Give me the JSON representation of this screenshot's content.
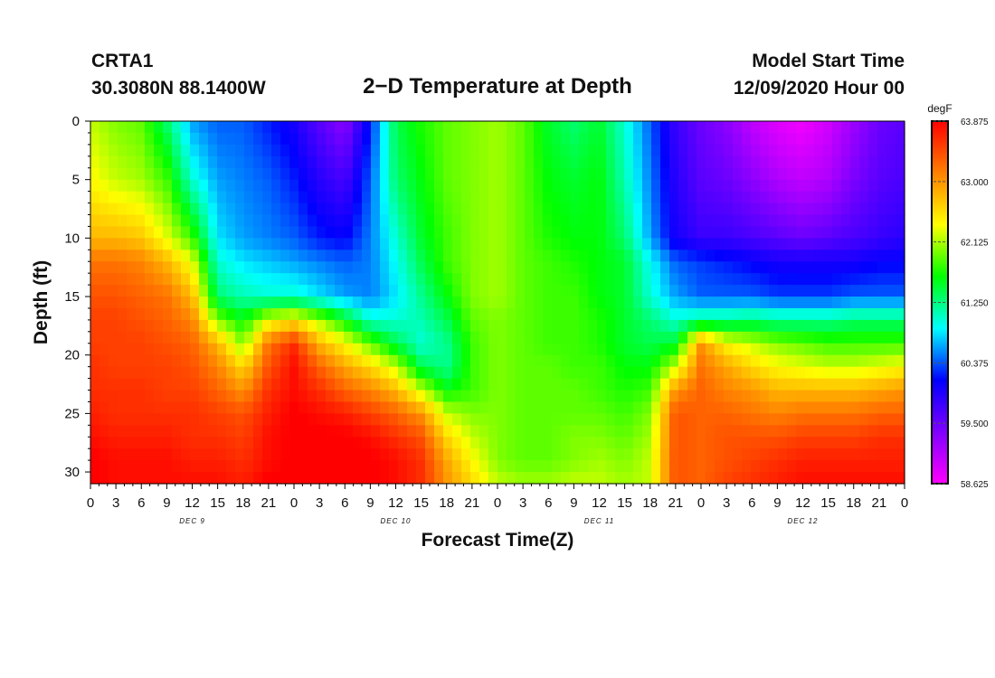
{
  "header": {
    "station": "CRTA1",
    "latlon": "30.3080N 88.1400W",
    "title": "2−D Temperature at Depth",
    "model_start_label": "Model Start Time",
    "model_start_value": "12/09/2020 Hour 00"
  },
  "colors": {
    "stops": [
      "#ff00ff",
      "#8000ff",
      "#0000ff",
      "#00ffff",
      "#00ff00",
      "#ffff00",
      "#ff8000",
      "#ff0000"
    ]
  },
  "chart_data": {
    "type": "heatmap",
    "title": "2−D Temperature at Depth",
    "xlabel": "Forecast Time(Z)",
    "ylabel": "Depth (ft)",
    "ylim": [
      0,
      31
    ],
    "y_inverted": true,
    "y_ticks": [
      "0",
      "5",
      "10",
      "15",
      "20",
      "25",
      "30"
    ],
    "x_ticks": [
      "0",
      "3",
      "6",
      "9",
      "12",
      "15",
      "18",
      "21",
      "0",
      "3",
      "6",
      "9",
      "12",
      "15",
      "18",
      "21",
      "0",
      "3",
      "6",
      "9",
      "12",
      "15",
      "18",
      "21",
      "0",
      "3",
      "6",
      "9",
      "12",
      "15",
      "18",
      "21",
      "0"
    ],
    "day_labels": [
      "DEC 9",
      "DEC 10",
      "DEC 11",
      "DEC 12"
    ],
    "colorbar": {
      "unit": "degF",
      "min": 58.625,
      "max": 63.875,
      "ticks": [
        "63.875",
        "63.000",
        "62.125",
        "61.250",
        "60.375",
        "59.500",
        "58.625"
      ]
    },
    "profiles_time_hours": [
      0,
      3,
      6,
      9,
      12,
      15,
      18,
      21,
      24,
      27,
      30,
      33,
      36,
      39,
      42,
      45,
      48,
      51,
      54,
      57,
      60,
      63,
      66,
      69,
      72,
      75,
      78,
      81,
      84,
      87,
      90,
      93,
      96
    ],
    "profiles_depth_ft": [
      0,
      5,
      10,
      12,
      15,
      17,
      19,
      21,
      23,
      25,
      27,
      29,
      31
    ],
    "values_degF": [
      [
        62.2,
        62.4,
        62.8,
        63.2,
        63.4,
        63.5,
        63.5,
        63.6,
        63.6,
        63.7,
        63.8,
        63.9,
        63.9
      ],
      [
        62.0,
        62.2,
        62.8,
        63.2,
        63.4,
        63.5,
        63.5,
        63.5,
        63.6,
        63.6,
        63.7,
        63.8,
        63.8
      ],
      [
        61.9,
        62.1,
        62.7,
        63.1,
        63.3,
        63.4,
        63.5,
        63.5,
        63.6,
        63.6,
        63.7,
        63.8,
        63.8
      ],
      [
        61.3,
        61.8,
        62.3,
        62.8,
        63.2,
        63.3,
        63.4,
        63.5,
        63.5,
        63.6,
        63.7,
        63.8,
        63.8
      ],
      [
        60.6,
        61.0,
        61.8,
        62.3,
        62.8,
        63.1,
        63.3,
        63.4,
        63.5,
        63.6,
        63.6,
        63.7,
        63.8
      ],
      [
        60.4,
        60.6,
        60.8,
        61.0,
        61.3,
        62.0,
        62.8,
        63.1,
        63.3,
        63.5,
        63.6,
        63.7,
        63.8
      ],
      [
        60.4,
        60.5,
        60.6,
        60.8,
        61.1,
        61.6,
        62.0,
        62.6,
        63.0,
        63.4,
        63.5,
        63.6,
        63.7
      ],
      [
        60.2,
        60.4,
        60.5,
        60.7,
        61.0,
        62.3,
        63.2,
        63.4,
        63.6,
        63.7,
        63.8,
        63.8,
        63.9
      ],
      [
        60.0,
        60.2,
        60.4,
        60.6,
        61.0,
        62.5,
        63.6,
        63.8,
        63.8,
        63.9,
        63.9,
        63.9,
        63.9
      ],
      [
        59.6,
        59.9,
        60.2,
        60.5,
        60.8,
        62.1,
        62.8,
        63.3,
        63.6,
        63.8,
        63.9,
        63.9,
        63.9
      ],
      [
        59.3,
        59.7,
        60.1,
        60.4,
        60.6,
        61.6,
        62.4,
        62.9,
        63.3,
        63.7,
        63.9,
        63.9,
        63.9
      ],
      [
        60.2,
        60.4,
        60.5,
        60.5,
        60.5,
        61.0,
        61.9,
        62.6,
        63.1,
        63.5,
        63.8,
        63.9,
        63.9
      ],
      [
        61.4,
        61.3,
        61.0,
        60.9,
        60.8,
        61.0,
        61.4,
        62.2,
        62.8,
        63.3,
        63.6,
        63.8,
        63.8
      ],
      [
        61.7,
        61.6,
        61.5,
        61.4,
        61.2,
        61.1,
        61.0,
        61.4,
        62.2,
        63.0,
        63.4,
        63.6,
        63.6
      ],
      [
        61.9,
        61.9,
        61.8,
        61.8,
        61.6,
        61.4,
        61.2,
        61.2,
        61.6,
        62.2,
        62.6,
        62.9,
        63.0
      ],
      [
        62.0,
        62.0,
        62.0,
        62.0,
        62.0,
        61.9,
        61.8,
        61.8,
        61.8,
        62.0,
        62.2,
        62.4,
        62.6
      ],
      [
        62.1,
        62.1,
        62.1,
        62.1,
        62.1,
        62.0,
        62.0,
        62.0,
        62.0,
        62.0,
        62.0,
        62.0,
        62.2
      ],
      [
        61.9,
        61.9,
        61.9,
        61.9,
        61.9,
        61.9,
        61.9,
        61.9,
        61.9,
        61.9,
        61.9,
        61.9,
        62.1
      ],
      [
        61.5,
        61.6,
        61.7,
        61.8,
        61.8,
        61.8,
        61.8,
        61.9,
        61.9,
        61.9,
        61.9,
        61.9,
        62.1
      ],
      [
        61.3,
        61.5,
        61.6,
        61.7,
        61.8,
        61.8,
        61.8,
        61.8,
        61.9,
        61.9,
        62.0,
        62.0,
        62.2
      ],
      [
        61.5,
        61.6,
        61.6,
        61.6,
        61.6,
        61.7,
        61.7,
        61.8,
        61.8,
        61.9,
        62.0,
        62.1,
        62.2
      ],
      [
        61.0,
        61.1,
        61.3,
        61.5,
        61.5,
        61.5,
        61.5,
        61.6,
        61.7,
        61.8,
        61.9,
        62.0,
        62.1
      ],
      [
        60.4,
        60.5,
        60.6,
        60.9,
        61.0,
        61.3,
        61.4,
        61.6,
        61.8,
        62.0,
        62.1,
        62.2,
        62.2
      ],
      [
        59.8,
        59.9,
        60.0,
        60.4,
        60.6,
        61.0,
        61.5,
        62.2,
        63.0,
        63.4,
        63.4,
        63.4,
        63.4
      ],
      [
        59.5,
        59.6,
        59.8,
        60.3,
        60.4,
        61.2,
        63.0,
        63.2,
        63.3,
        63.3,
        63.3,
        63.3,
        63.3
      ],
      [
        59.3,
        59.5,
        59.8,
        60.2,
        60.4,
        61.2,
        62.4,
        62.9,
        63.1,
        63.3,
        63.4,
        63.4,
        63.5
      ],
      [
        59.0,
        59.3,
        59.7,
        60.1,
        60.4,
        61.3,
        62.2,
        62.6,
        63.0,
        63.2,
        63.4,
        63.5,
        63.6
      ],
      [
        58.8,
        59.1,
        59.6,
        60.0,
        60.3,
        61.2,
        62.0,
        62.4,
        62.8,
        63.1,
        63.4,
        63.6,
        63.7
      ],
      [
        58.7,
        59.0,
        59.5,
        60.0,
        60.3,
        61.2,
        61.9,
        62.3,
        62.8,
        63.2,
        63.5,
        63.7,
        63.8
      ],
      [
        58.9,
        59.1,
        59.6,
        60.0,
        60.3,
        61.2,
        61.8,
        62.2,
        62.8,
        63.2,
        63.5,
        63.7,
        63.8
      ],
      [
        59.2,
        59.4,
        59.7,
        60.0,
        60.4,
        61.3,
        61.8,
        62.2,
        62.8,
        63.2,
        63.5,
        63.7,
        63.8
      ],
      [
        59.5,
        59.6,
        59.8,
        60.1,
        60.4,
        61.3,
        61.8,
        62.3,
        62.9,
        63.3,
        63.6,
        63.7,
        63.8
      ],
      [
        59.6,
        59.7,
        59.9,
        60.1,
        60.4,
        61.3,
        61.8,
        62.4,
        63.0,
        63.3,
        63.6,
        63.7,
        63.8
      ]
    ]
  }
}
